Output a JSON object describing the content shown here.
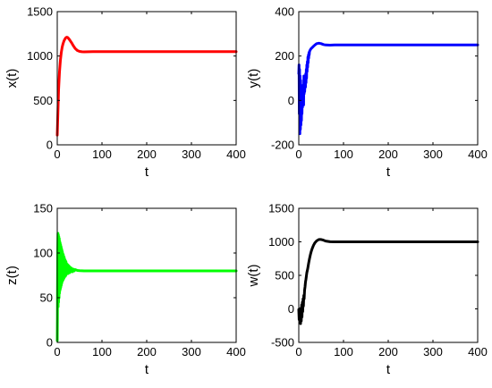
{
  "chart_data": [
    {
      "type": "line",
      "xlabel": "t",
      "ylabel": "x(t)",
      "xlim": [
        0,
        400
      ],
      "ylim": [
        0,
        1500
      ],
      "xticks": [
        "0",
        "100",
        "200",
        "300",
        "400"
      ],
      "yticks": [
        "0",
        "500",
        "1000",
        "1500"
      ],
      "color": "#ff0000",
      "grid": false,
      "series": [
        {
          "x": [
            0,
            1,
            2,
            3,
            5,
            7,
            9,
            11,
            13,
            15,
            17,
            19,
            21,
            23,
            25,
            28,
            32,
            36,
            40,
            45,
            50,
            55,
            60,
            70,
            80,
            100,
            150,
            200,
            250,
            300,
            350,
            400
          ],
          "y": [
            110,
            280,
            450,
            620,
            820,
            950,
            1040,
            1100,
            1140,
            1170,
            1190,
            1205,
            1212,
            1210,
            1200,
            1180,
            1150,
            1115,
            1085,
            1062,
            1052,
            1048,
            1047,
            1048,
            1050,
            1050,
            1050,
            1050,
            1050,
            1050,
            1050,
            1050
          ]
        }
      ]
    },
    {
      "type": "line",
      "xlabel": "t",
      "ylabel": "y(t)",
      "xlim": [
        0,
        400
      ],
      "ylim": [
        -200,
        400
      ],
      "xticks": [
        "0",
        "100",
        "200",
        "300",
        "400"
      ],
      "yticks": [
        "-200",
        "0",
        "200",
        "400"
      ],
      "color": "#0000ff",
      "grid": false,
      "series": [
        {
          "x": [
            0,
            0.6,
            1.2,
            1.8,
            2.4,
            3,
            3.6,
            4.2,
            4.8,
            5.4,
            6,
            6.6,
            7.2,
            7.8,
            8.4,
            9,
            9.6,
            10.2,
            10.8,
            11.4,
            12,
            12.6,
            13.2,
            13.8,
            14.4,
            15,
            15.6,
            16.2,
            16.8,
            17.4,
            18,
            18.6,
            19.2,
            19.8,
            20.4,
            21,
            21.6,
            22.2,
            22.8,
            23.4,
            24,
            25,
            27,
            30,
            33,
            36,
            40,
            45,
            50,
            55,
            60,
            70,
            80,
            100,
            150,
            200,
            250,
            300,
            350,
            400
          ],
          "y": [
            120,
            160,
            -60,
            140,
            -150,
            110,
            -130,
            90,
            -110,
            60,
            -90,
            40,
            -60,
            20,
            -30,
            10,
            -10,
            70,
            -20,
            110,
            30,
            100,
            40,
            70,
            90,
            60,
            120,
            80,
            140,
            100,
            160,
            130,
            175,
            150,
            195,
            170,
            205,
            190,
            215,
            205,
            220,
            225,
            232,
            238,
            244,
            250,
            256,
            258,
            256,
            252,
            250,
            249,
            250,
            250,
            250,
            250,
            250,
            250,
            250,
            250
          ]
        }
      ]
    },
    {
      "type": "line",
      "xlabel": "t",
      "ylabel": "z(t)",
      "xlim": [
        0,
        400
      ],
      "ylim": [
        0,
        150
      ],
      "xticks": [
        "0",
        "100",
        "200",
        "300",
        "400"
      ],
      "yticks": [
        "0",
        "50",
        "100",
        "150"
      ],
      "color": "#00ff00",
      "grid": false,
      "series": [
        {
          "x": [
            0,
            0.3,
            0.6,
            1.0,
            1.5,
            2.0,
            2.5,
            3.0,
            3.5,
            4.0,
            4.5,
            5.0,
            5.5,
            6.0,
            6.5,
            7.0,
            7.5,
            8.0,
            8.5,
            9.0,
            9.5,
            10.0,
            10.5,
            11.0,
            11.5,
            12.0,
            12.5,
            13.0,
            13.5,
            14.0,
            14.5,
            15.0,
            15.5,
            16.0,
            16.5,
            17.0,
            17.5,
            18.0,
            18.5,
            19.0,
            19.5,
            20.0,
            21,
            22,
            23,
            24,
            25,
            26,
            27,
            28,
            29,
            30,
            32,
            34,
            36,
            38,
            40,
            45,
            50,
            60,
            70,
            80,
            100,
            150,
            200,
            250,
            300,
            350,
            400
          ],
          "y": [
            2,
            30,
            60,
            100,
            122,
            40,
            120,
            45,
            118,
            50,
            116,
            55,
            113,
            58,
            111,
            60,
            109,
            62,
            107,
            64,
            105,
            66,
            103,
            68,
            101,
            69,
            99,
            70,
            98,
            71,
            96,
            72,
            95,
            73,
            93,
            74,
            92,
            74,
            91,
            75,
            90,
            76,
            88,
            77,
            87,
            77,
            86,
            78,
            85,
            78,
            84,
            79,
            83,
            79,
            82,
            80,
            81.5,
            80.5,
            80.2,
            80,
            80,
            80,
            80,
            80,
            80,
            80,
            80,
            80,
            80
          ]
        }
      ]
    },
    {
      "type": "line",
      "xlabel": "t",
      "ylabel": "w(t)",
      "xlim": [
        0,
        400
      ],
      "ylim": [
        -500,
        1500
      ],
      "xticks": [
        "0",
        "100",
        "200",
        "300",
        "400"
      ],
      "yticks": [
        "-500",
        "0",
        "500",
        "1000",
        "1500"
      ],
      "color": "#000000",
      "grid": false,
      "series": [
        {
          "x": [
            0,
            0.8,
            1.6,
            2.4,
            3.2,
            4,
            4.8,
            5.6,
            6.4,
            7.2,
            8,
            8.8,
            9.6,
            10.4,
            11.2,
            12,
            13,
            14,
            15,
            16,
            18,
            20,
            22,
            24,
            26,
            28,
            30,
            33,
            36,
            40,
            45,
            50,
            55,
            60,
            70,
            80,
            100,
            150,
            200,
            250,
            300,
            350,
            400
          ],
          "y": [
            -10,
            -160,
            0,
            -200,
            -20,
            -220,
            10,
            -180,
            60,
            -120,
            100,
            -40,
            150,
            40,
            200,
            150,
            280,
            330,
            400,
            440,
            540,
            600,
            680,
            750,
            810,
            860,
            900,
            950,
            985,
            1015,
            1035,
            1035,
            1025,
            1012,
            1002,
            1000,
            1000,
            1000,
            1000,
            1000,
            1000,
            1000,
            1000
          ]
        }
      ]
    }
  ]
}
